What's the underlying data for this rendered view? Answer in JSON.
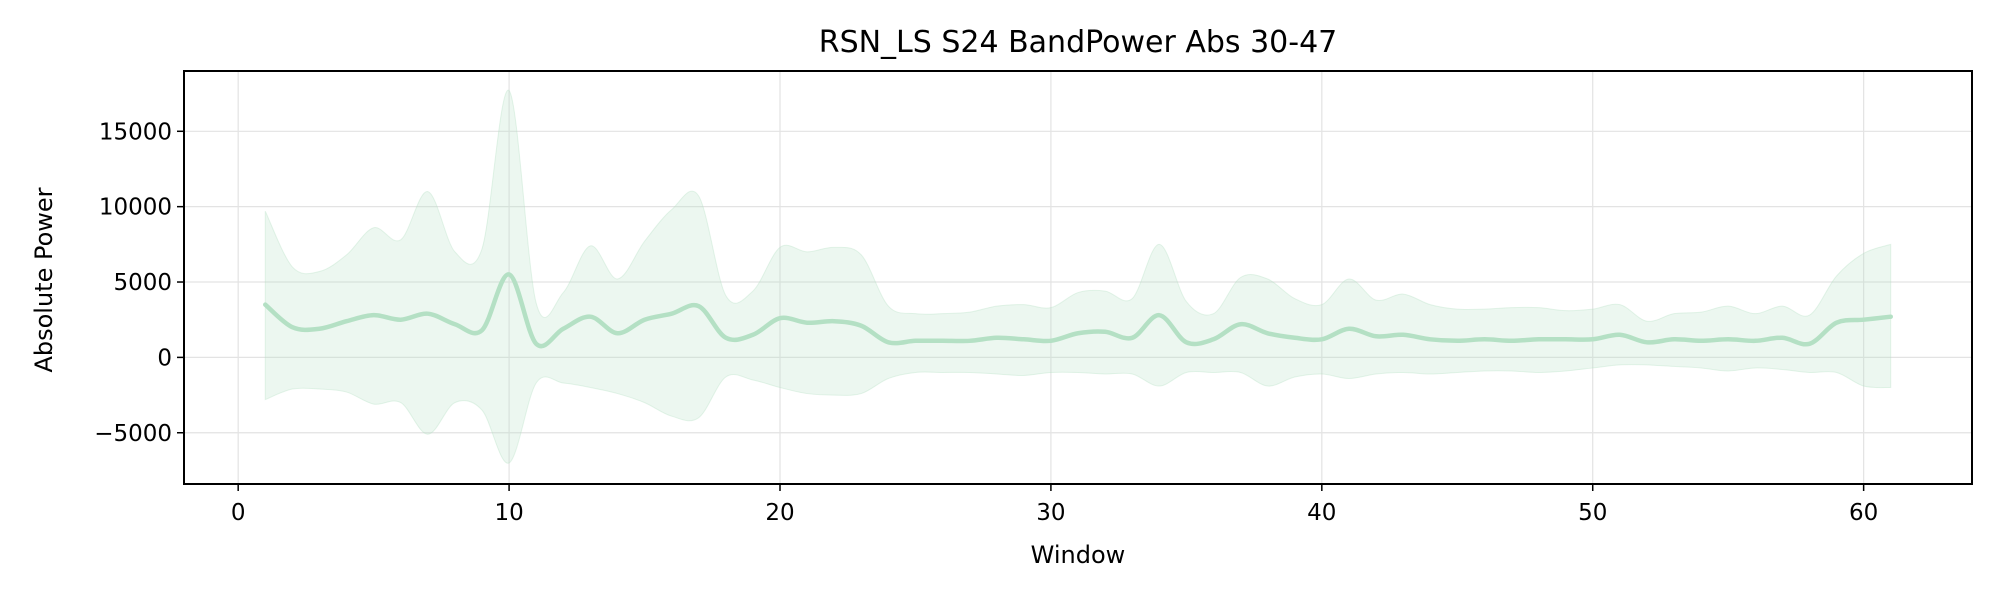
{
  "chart_data": {
    "type": "line",
    "title": "RSN_LS S24 BandPower Abs 30-47",
    "xlabel": "Window",
    "ylabel": "Absolute Power",
    "xlim": [
      -2,
      64
    ],
    "ylim": [
      -8400,
      19000
    ],
    "grid": true,
    "xticks": [
      0,
      10,
      20,
      30,
      40,
      50,
      60
    ],
    "yticks": [
      -5000,
      0,
      5000,
      10000,
      15000
    ],
    "ytick_labels": [
      "−5000",
      "0",
      "5000",
      "10000",
      "15000"
    ],
    "colors": {
      "line": "#b4e0c4",
      "band": "#b4e0c4"
    },
    "series": [
      {
        "x": [
          1,
          2,
          3,
          4,
          5,
          6,
          7,
          8,
          9,
          10,
          11,
          12,
          13,
          14,
          15,
          16,
          17,
          18,
          19,
          20,
          21,
          22,
          23,
          24,
          25,
          26,
          27,
          28,
          29,
          30,
          31,
          32,
          33,
          34,
          35,
          36,
          37,
          38,
          39,
          40,
          41,
          42,
          43,
          44,
          45,
          46,
          47,
          48,
          49,
          50,
          51,
          52,
          53,
          54,
          55,
          56,
          57,
          58,
          59,
          60,
          61
        ],
        "mean": [
          3500,
          2000,
          1900,
          2400,
          2800,
          2500,
          2900,
          2200,
          1800,
          5500,
          900,
          1900,
          2700,
          1600,
          2500,
          2900,
          3400,
          1300,
          1500,
          2600,
          2300,
          2400,
          2100,
          1000,
          1100,
          1100,
          1100,
          1300,
          1200,
          1100,
          1600,
          1700,
          1300,
          2800,
          1000,
          1200,
          2200,
          1600,
          1300,
          1200,
          1900,
          1400,
          1500,
          1200,
          1100,
          1200,
          1100,
          1200,
          1200,
          1200,
          1500,
          1000,
          1200,
          1100,
          1200,
          1100,
          1300,
          900,
          2300,
          2500,
          2700
        ],
        "upper": [
          9700,
          6000,
          5700,
          6800,
          8600,
          7800,
          11000,
          7000,
          7200,
          17700,
          3600,
          4300,
          7400,
          5200,
          7700,
          9800,
          10700,
          4100,
          4400,
          7300,
          7000,
          7300,
          6800,
          3400,
          2900,
          2900,
          3000,
          3400,
          3500,
          3300,
          4300,
          4400,
          3900,
          7500,
          3700,
          2900,
          5300,
          5200,
          3900,
          3500,
          5200,
          3800,
          4200,
          3500,
          3200,
          3200,
          3300,
          3300,
          3100,
          3200,
          3500,
          2400,
          2900,
          3000,
          3400,
          2900,
          3400,
          2800,
          5400,
          6900,
          7500
        ],
        "lower": [
          -2800,
          -2100,
          -2100,
          -2300,
          -3100,
          -3000,
          -5100,
          -3000,
          -3500,
          -7000,
          -1700,
          -1700,
          -2000,
          -2400,
          -3000,
          -3900,
          -4000,
          -1300,
          -1500,
          -2000,
          -2400,
          -2500,
          -2400,
          -1400,
          -1000,
          -1000,
          -1000,
          -1100,
          -1200,
          -1000,
          -1000,
          -1100,
          -1100,
          -1900,
          -1000,
          -1000,
          -1000,
          -1900,
          -1300,
          -1100,
          -1400,
          -1100,
          -1000,
          -1100,
          -1000,
          -900,
          -900,
          -1000,
          -900,
          -700,
          -500,
          -500,
          -600,
          -700,
          -900,
          -700,
          -800,
          -1000,
          -1000,
          -1900,
          -2000
        ]
      }
    ]
  }
}
